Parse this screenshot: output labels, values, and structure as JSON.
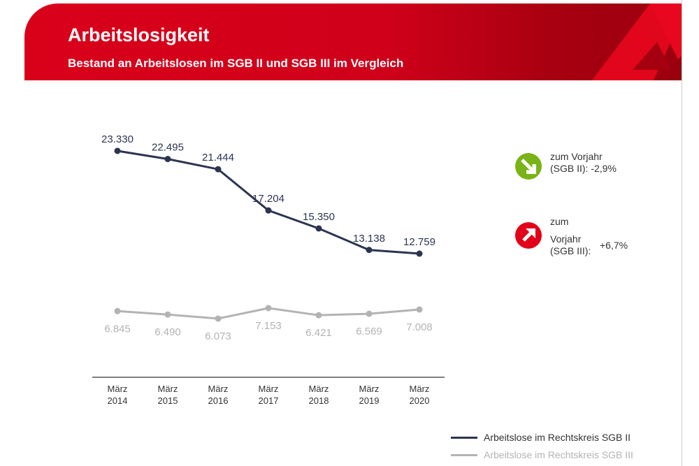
{
  "header": {
    "title": "Arbeitslosigkeit",
    "subtitle": "Bestand an Arbeitslosen im SGB II und SGB III im Vergleich"
  },
  "colors": {
    "brand": "#d9001a",
    "sgb2": "#2b3550",
    "sgb3": "#b3b3b3",
    "down": "#7ab317",
    "up": "#e2001a"
  },
  "chart_data": {
    "type": "line",
    "categories": [
      "März\n2014",
      "März\n2015",
      "März\n2016",
      "März\n2017",
      "März\n2018",
      "März\n2019",
      "März\n2020"
    ],
    "series": [
      {
        "name": "Arbeitslose im Rechtskreis SGB II",
        "values": [
          23330,
          22495,
          21444,
          17204,
          15350,
          13138,
          12759
        ],
        "labels": [
          "23.330",
          "22.495",
          "21.444",
          "17.204",
          "15.350",
          "13.138",
          "12.759"
        ]
      },
      {
        "name": "Arbeitslose im Rechtskreis SGB III",
        "values": [
          6845,
          6490,
          6073,
          7153,
          6421,
          6569,
          7008
        ],
        "labels": [
          "6.845",
          "6.490",
          "6.073",
          "7.153",
          "6.421",
          "6.569",
          "7.008"
        ]
      }
    ],
    "ylim": [
      0,
      23330
    ],
    "legend": "bottom-right",
    "grid": false
  },
  "annotations": [
    {
      "icon": "arrow-down-right-icon",
      "line1": "zum Vorjahr",
      "line2": "(SGB II): -2,9%"
    },
    {
      "icon": "arrow-up-right-icon",
      "line1": "zum",
      "line2": "Vorjahr",
      "line3": "(SGB III):",
      "value": "+6,7%"
    }
  ]
}
